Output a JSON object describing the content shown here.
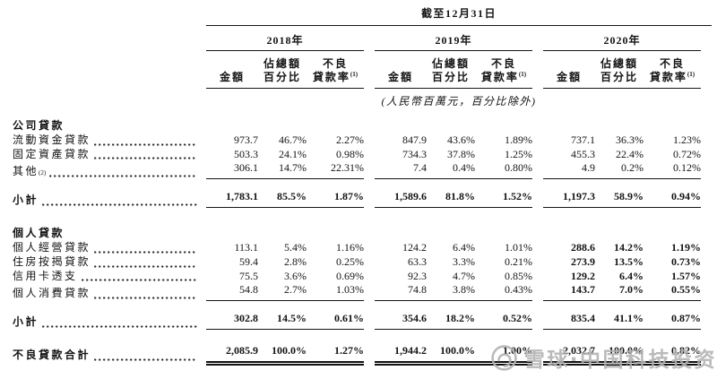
{
  "page": {
    "background": "#ffffff",
    "text_color": "#141414"
  },
  "table": {
    "title": "截至12月31日",
    "unit_note": "(人民幣百萬元，百分比除外)",
    "year_headers": [
      "2018年",
      "2019年",
      "2020年"
    ],
    "sub_headers": {
      "amount": "金額",
      "pct_of_total_line1": "佔總額",
      "pct_of_total_line2": "百分比",
      "npl_ratio_line1": "不良",
      "npl_ratio_line2": "貸款率",
      "npl_ratio_sup": "(1)"
    },
    "rows": [
      {
        "type": "section",
        "label": "公司貸款"
      },
      {
        "type": "data",
        "label": "流動資金貸款",
        "values": [
          "973.7",
          "46.7%",
          "2.27%",
          "847.9",
          "43.6%",
          "1.89%",
          "737.1",
          "36.3%",
          "1.23%"
        ]
      },
      {
        "type": "data",
        "label": "固定資產貸款",
        "values": [
          "503.3",
          "24.1%",
          "0.98%",
          "734.3",
          "37.8%",
          "1.25%",
          "455.3",
          "22.4%",
          "0.72%"
        ]
      },
      {
        "type": "data",
        "label": "其他",
        "label_sup": "(2)",
        "rule_below": true,
        "values": [
          "306.1",
          "14.7%",
          "22.31%",
          "7.4",
          "0.4%",
          "0.80%",
          "4.9",
          "0.2%",
          "0.12%"
        ]
      },
      {
        "type": "subtotal",
        "label": "小計",
        "rule_below": true,
        "values": [
          "1,783.1",
          "85.5%",
          "1.87%",
          "1,589.6",
          "81.8%",
          "1.52%",
          "1,197.3",
          "58.9%",
          "0.94%"
        ]
      },
      {
        "type": "section",
        "label": "個人貸款",
        "spaced": true
      },
      {
        "type": "data",
        "label": "個人經營貸款",
        "bold_year3": true,
        "values": [
          "113.1",
          "5.4%",
          "1.16%",
          "124.2",
          "6.4%",
          "1.01%",
          "288.6",
          "14.2%",
          "1.19%"
        ]
      },
      {
        "type": "data",
        "label": "住房按揭貸款",
        "bold_year3": true,
        "values": [
          "59.4",
          "2.8%",
          "0.25%",
          "63.3",
          "3.3%",
          "0.21%",
          "273.9",
          "13.5%",
          "0.73%"
        ]
      },
      {
        "type": "data",
        "label": "信用卡透支",
        "bold_year3": true,
        "values": [
          "75.5",
          "3.6%",
          "0.69%",
          "92.3",
          "4.7%",
          "0.85%",
          "129.2",
          "6.4%",
          "1.57%"
        ]
      },
      {
        "type": "data",
        "label": "個人消費貸款",
        "bold_year3": true,
        "rule_below": true,
        "values": [
          "54.8",
          "2.7%",
          "1.03%",
          "74.8",
          "3.8%",
          "0.43%",
          "143.7",
          "7.0%",
          "0.55%"
        ]
      },
      {
        "type": "subtotal",
        "label": "小計",
        "rule_below": true,
        "values": [
          "302.8",
          "14.5%",
          "0.61%",
          "354.6",
          "18.2%",
          "0.52%",
          "835.4",
          "41.1%",
          "0.87%"
        ]
      },
      {
        "type": "total",
        "label": "不良貸款合計",
        "values": [
          "2,085.9",
          "100.0%",
          "1.27%",
          "1,944.2",
          "100.0%",
          "1.00%",
          "2,032.7",
          "100.0%",
          "0.82%"
        ]
      }
    ]
  },
  "watermark": {
    "logo": "xueqiu-logo",
    "text": "雪球·中国科技投资",
    "color": "#b1b1b1"
  }
}
